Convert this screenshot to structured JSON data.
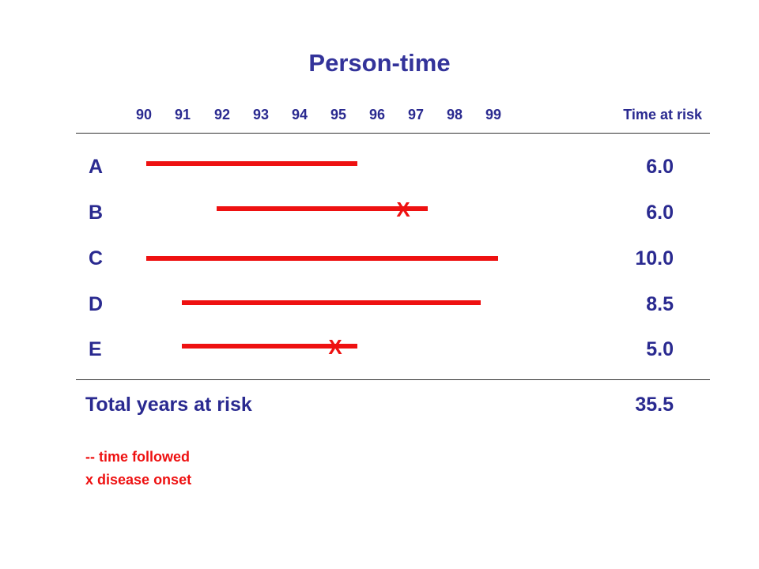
{
  "title": "Person-time",
  "axis": {
    "years": [
      "90",
      "91",
      "92",
      "93",
      "94",
      "95",
      "96",
      "97",
      "98",
      "99"
    ],
    "time_at_risk_label": "Time at risk"
  },
  "subjects": [
    {
      "label": "A",
      "start": 90,
      "end": 96.0,
      "onset": false,
      "time_at_risk": "6.0"
    },
    {
      "label": "B",
      "start": 92,
      "end": 98.0,
      "onset": true,
      "time_at_risk": "6.0"
    },
    {
      "label": "C",
      "start": 90,
      "end": 100.0,
      "onset": false,
      "time_at_risk": "10.0"
    },
    {
      "label": "D",
      "start": 91,
      "end": 99.5,
      "onset": false,
      "time_at_risk": "8.5"
    },
    {
      "label": "E",
      "start": 91,
      "end": 96.0,
      "onset": true,
      "time_at_risk": "5.0"
    }
  ],
  "onset_marker": "X",
  "total": {
    "label": "Total years at risk",
    "value": "35.5"
  },
  "legend": {
    "line1": "-- time followed",
    "line2": "x disease onset"
  },
  "colors": {
    "title": "#33339a",
    "text": "#2a2a90",
    "bar": "#ee1111"
  }
}
